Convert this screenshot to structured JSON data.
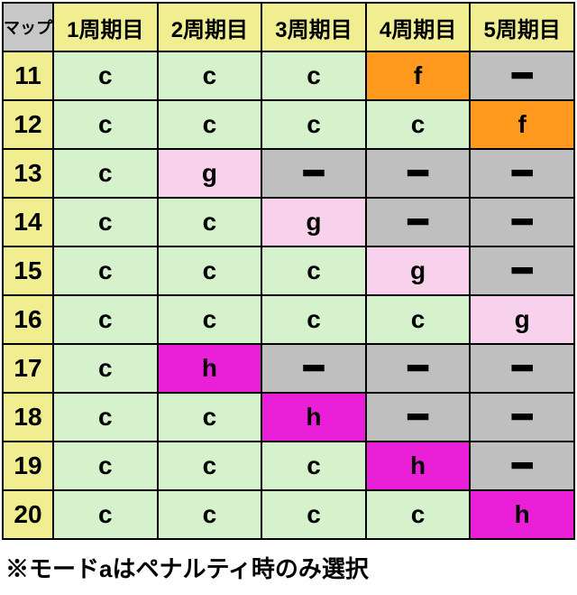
{
  "colors": {
    "header_corner": "#c7c7c7",
    "col_header": "#f0ee90",
    "row_header": "#f0ee90",
    "c": "#d5f2cd",
    "f": "#ff9a1f",
    "g": "#f8d2ec",
    "h": "#ea1fd8",
    "dash": "#bfbfbf"
  },
  "corner_label": "マップ",
  "columns": [
    "1周期目",
    "2周期目",
    "3周期目",
    "4周期目",
    "5周期目"
  ],
  "row_labels": [
    "11",
    "12",
    "13",
    "14",
    "15",
    "16",
    "17",
    "18",
    "19",
    "20"
  ],
  "rows": [
    [
      "c",
      "c",
      "c",
      "f",
      "―"
    ],
    [
      "c",
      "c",
      "c",
      "c",
      "f"
    ],
    [
      "c",
      "g",
      "―",
      "―",
      "―"
    ],
    [
      "c",
      "c",
      "g",
      "―",
      "―"
    ],
    [
      "c",
      "c",
      "c",
      "g",
      "―"
    ],
    [
      "c",
      "c",
      "c",
      "c",
      "g"
    ],
    [
      "c",
      "h",
      "―",
      "―",
      "―"
    ],
    [
      "c",
      "c",
      "h",
      "―",
      "―"
    ],
    [
      "c",
      "c",
      "c",
      "h",
      "―"
    ],
    [
      "c",
      "c",
      "c",
      "c",
      "h"
    ]
  ],
  "note": "※モードaはペナルティ時のみ選択"
}
